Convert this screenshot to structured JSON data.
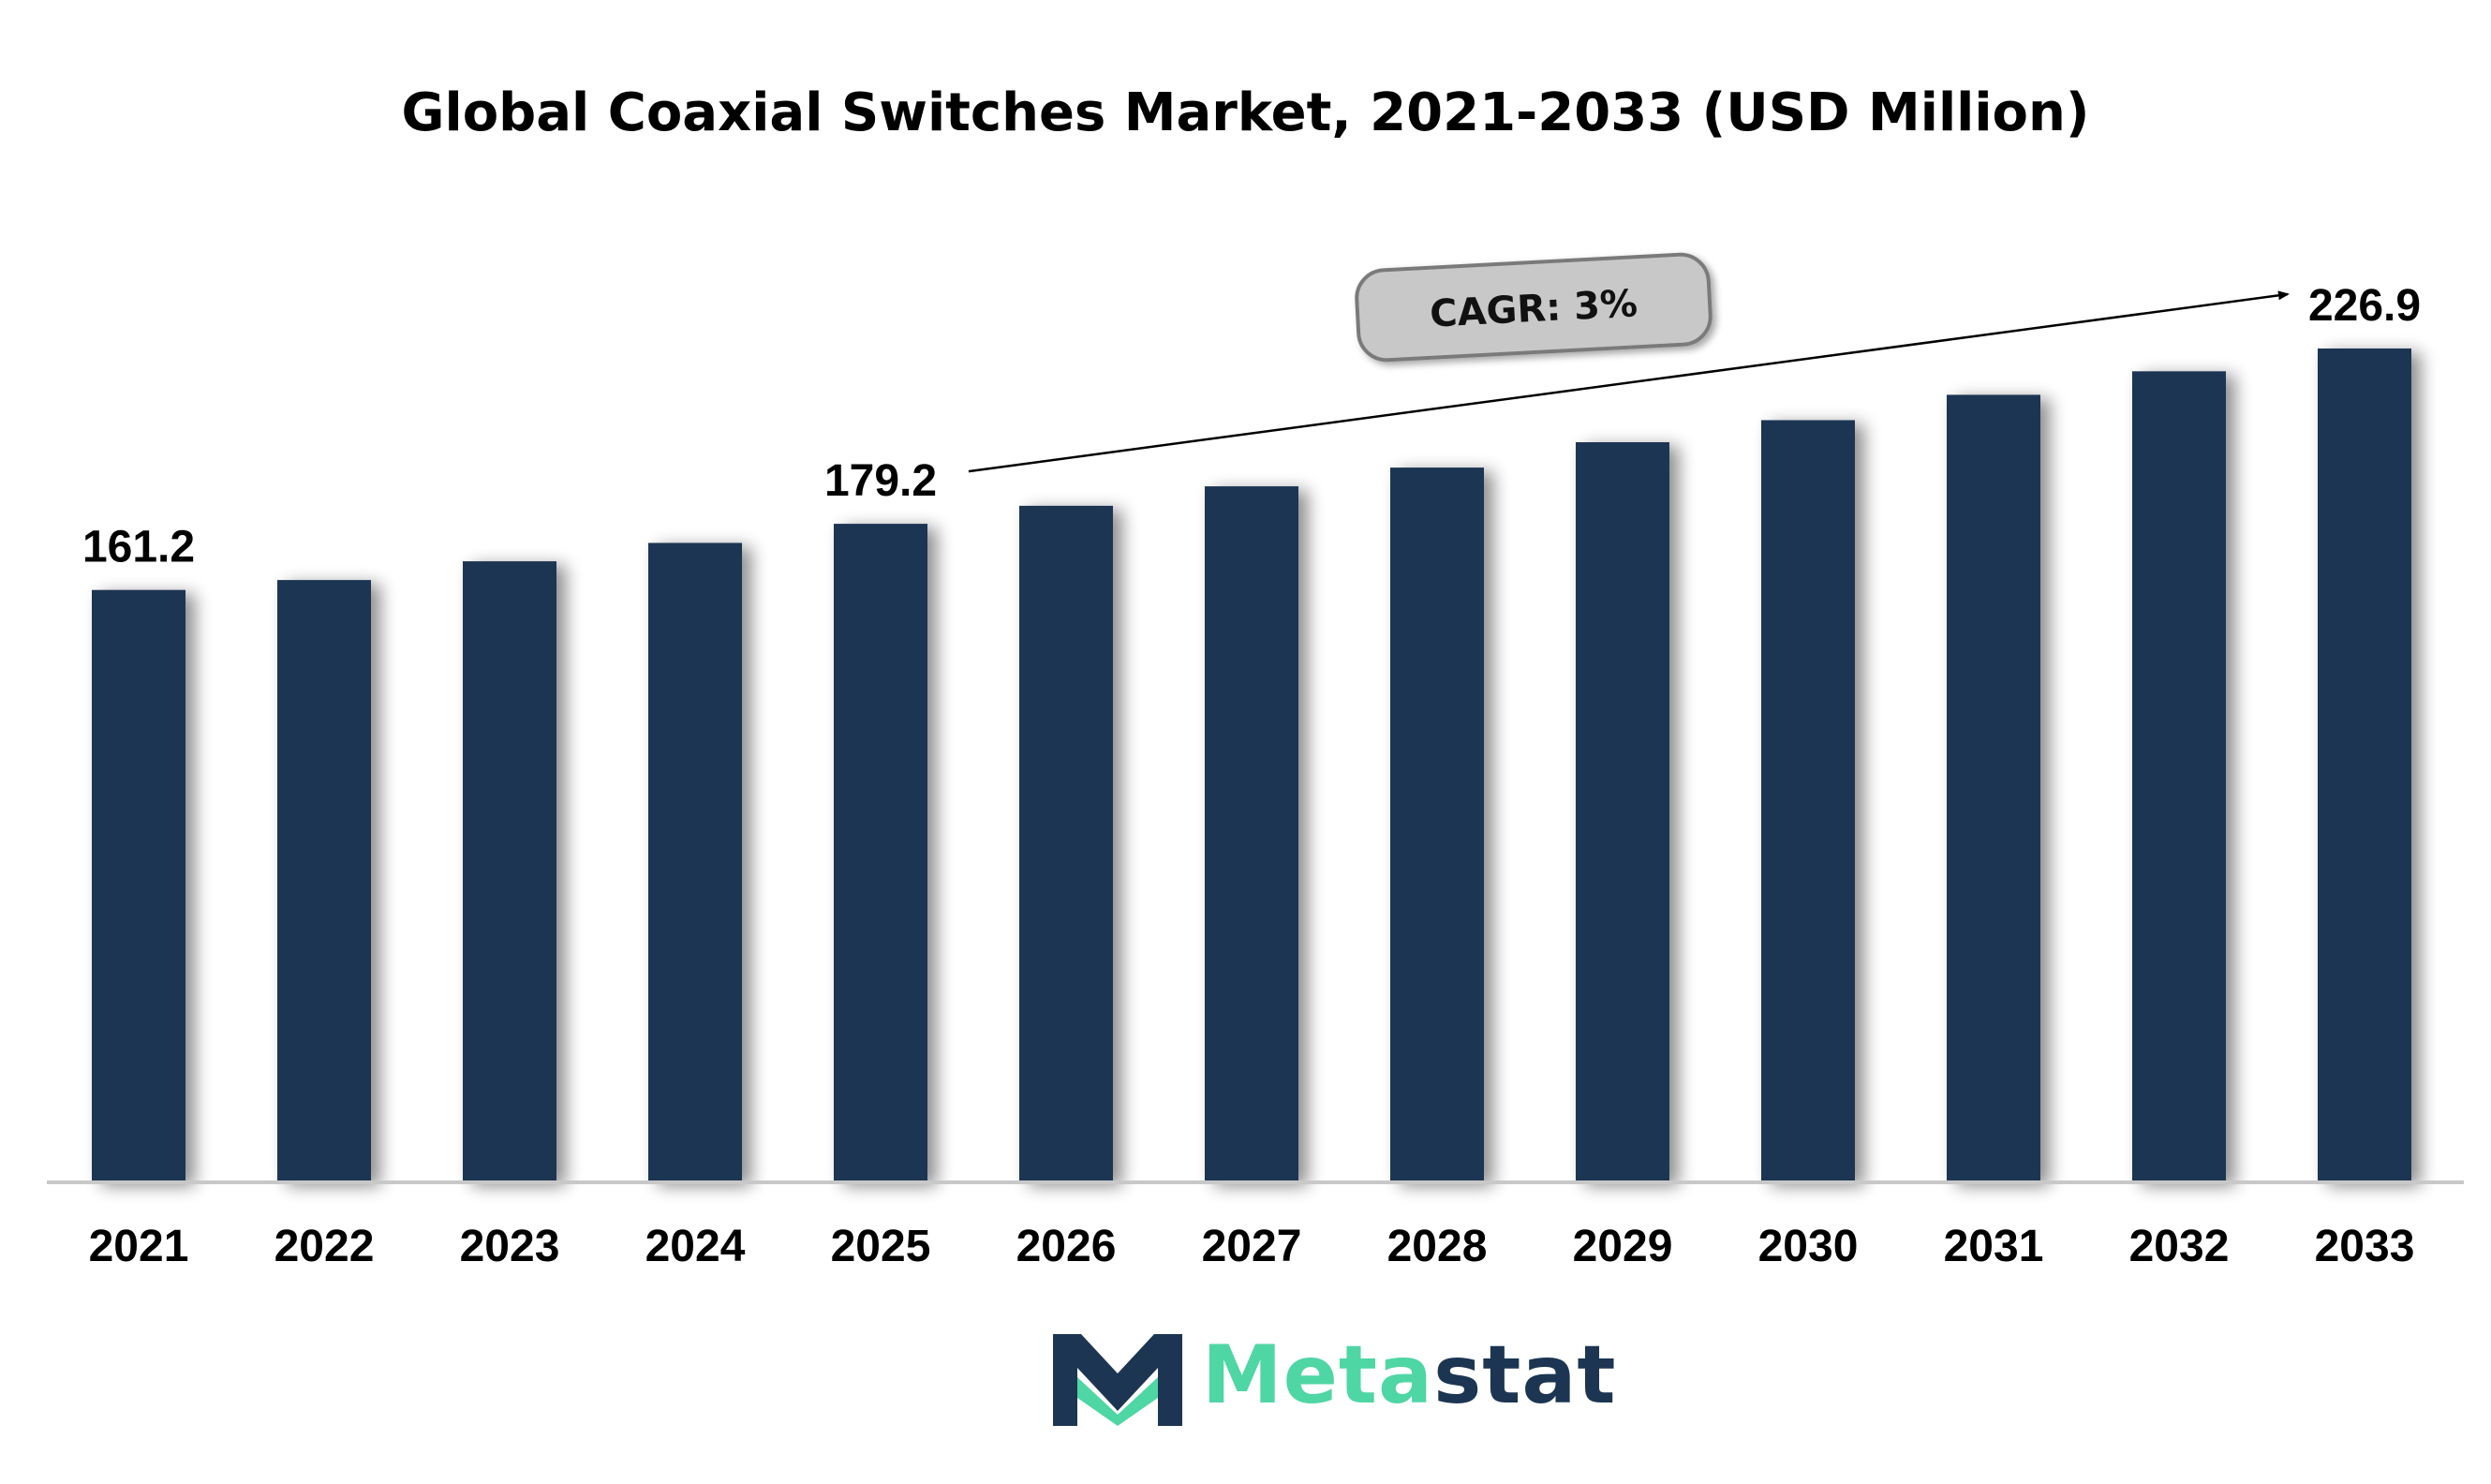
{
  "chart_data": {
    "type": "bar",
    "title": "Global Coaxial Switches Market, 2021-2033 (USD Million)",
    "categories": [
      "2021",
      "2022",
      "2023",
      "2024",
      "2025",
      "2026",
      "2027",
      "2028",
      "2029",
      "2030",
      "2031",
      "2032",
      "2033"
    ],
    "values": [
      161.2,
      163.9,
      169.0,
      174.0,
      179.2,
      184.1,
      189.4,
      194.5,
      201.4,
      207.4,
      214.3,
      220.7,
      226.9
    ],
    "data_labels": {
      "0": "161.2",
      "4": "179.2",
      "12": "226.9"
    },
    "ylim": [
      0,
      226.9
    ],
    "bar_color": "#1c3553",
    "grid": false,
    "annotation": {
      "text": "CAGR: 3%",
      "from_category": "2025",
      "to_category": "2033"
    }
  },
  "logo": {
    "part1": "Meta",
    "part2": "stat",
    "brand_colors": [
      "#4fd6a5",
      "#1c3553"
    ]
  }
}
